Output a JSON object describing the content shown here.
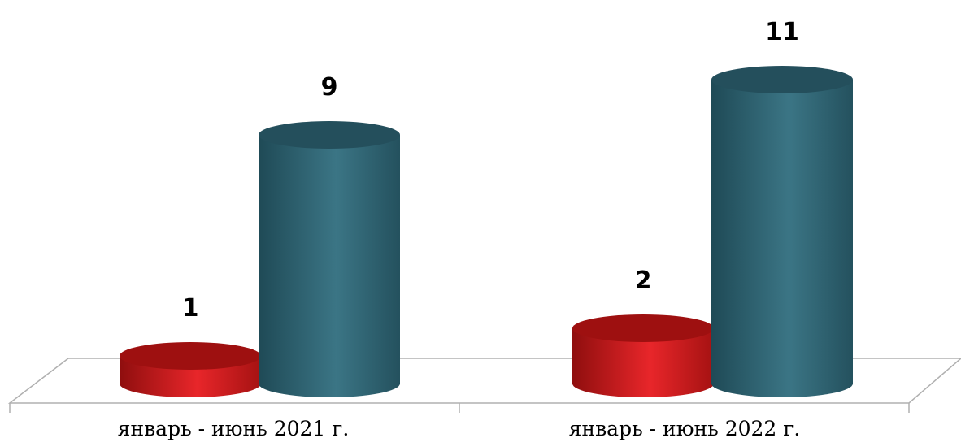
{
  "chart_data": {
    "type": "bar",
    "style": "3d-cylinder",
    "categories": [
      "январь - июнь 2021 г.",
      "январь - июнь 2022 г."
    ],
    "series": [
      {
        "values": [
          1,
          2
        ],
        "color": "#d41a1a"
      },
      {
        "values": [
          9,
          11
        ],
        "color": "#2f6675"
      }
    ],
    "ylim": [
      0,
      11
    ],
    "grid": false,
    "legend": "none"
  }
}
